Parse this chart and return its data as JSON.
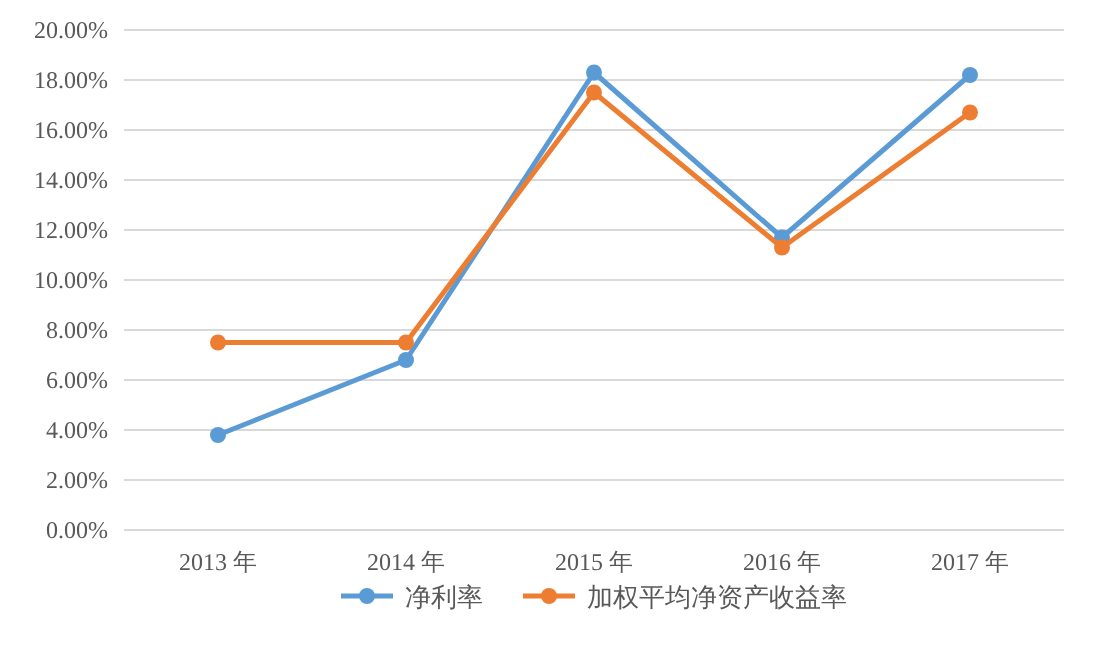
{
  "chart_data": {
    "type": "line",
    "categories": [
      "2013 年",
      "2014 年",
      "2015 年",
      "2016 年",
      "2017 年"
    ],
    "series": [
      {
        "name": "净利率",
        "color": "#5b9bd5",
        "values": [
          3.8,
          6.8,
          18.3,
          11.7,
          18.2
        ]
      },
      {
        "name": "加权平均净资产收益率",
        "color": "#ed7d31",
        "values": [
          7.5,
          7.5,
          17.5,
          11.3,
          16.7
        ]
      }
    ],
    "ylim": [
      0,
      20
    ],
    "yticks": [
      {
        "value": 0,
        "label": "0.00%"
      },
      {
        "value": 2,
        "label": "2.00%"
      },
      {
        "value": 4,
        "label": "4.00%"
      },
      {
        "value": 6,
        "label": "6.00%"
      },
      {
        "value": 8,
        "label": "8.00%"
      },
      {
        "value": 10,
        "label": "10.00%"
      },
      {
        "value": 12,
        "label": "12.00%"
      },
      {
        "value": 14,
        "label": "14.00%"
      },
      {
        "value": 16,
        "label": "16.00%"
      },
      {
        "value": 18,
        "label": "18.00%"
      },
      {
        "value": 20,
        "label": "20.00%"
      }
    ],
    "grid": "y",
    "legend": "bottom",
    "marker": "circle",
    "line_style": "solid"
  }
}
